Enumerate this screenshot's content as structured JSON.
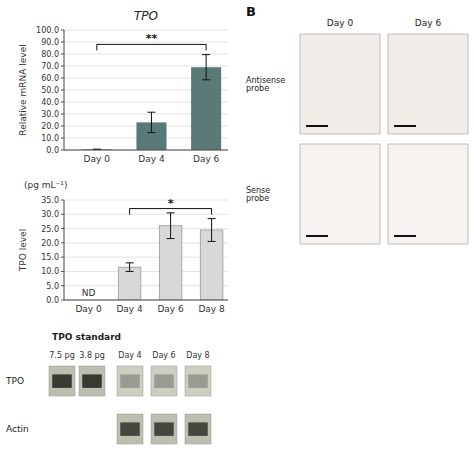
{
  "chart_data": [
    {
      "type": "bar",
      "title": "TPO",
      "categories": [
        "Day 0",
        "Day 4",
        "Day 6"
      ],
      "values": [
        0.5,
        23.0,
        69.0
      ],
      "errors": [
        0.2,
        8.5,
        10.5
      ],
      "color": "#5a7a78",
      "ylabel": "Relative mRNA level",
      "ylim": [
        0,
        100
      ],
      "yticks": [
        {
          "value": 0,
          "label": "0.0"
        },
        {
          "value": 10,
          "label": "10.0"
        },
        {
          "value": 20,
          "label": "20.0"
        },
        {
          "value": 30,
          "label": "30.0"
        },
        {
          "value": 40,
          "label": "40.0"
        },
        {
          "value": 50,
          "label": "50.0"
        },
        {
          "value": 60,
          "label": "60.0"
        },
        {
          "value": 70,
          "label": "70.0"
        },
        {
          "value": 80,
          "label": "80.0"
        },
        {
          "value": 90,
          "label": "90.0"
        },
        {
          "value": 100,
          "label": "100.0"
        }
      ],
      "grid": true,
      "annotations": [
        {
          "text": "**",
          "from": "Day 0",
          "to": "Day 6",
          "y": 88
        },
        {
          "text": "B"
        },
        {
          "text": "Day 0"
        },
        {
          "text": "Day 6"
        },
        {
          "text": "Antisense\nprobe"
        },
        {
          "text": "Sense\nprobe"
        }
      ]
    },
    {
      "type": "bar",
      "categories": [
        "Day 0",
        "Day 4",
        "Day 6",
        "Day 8"
      ],
      "values": [
        null,
        11.5,
        26.0,
        24.5
      ],
      "errors": [
        null,
        1.5,
        4.5,
        4.0
      ],
      "color": "#d8d8d8",
      "ylabel": "TPO level",
      "ylim": [
        0,
        35
      ],
      "yticks": [
        {
          "value": 0,
          "label": "0.0"
        },
        {
          "value": 5,
          "label": "5.0"
        },
        {
          "value": 10,
          "label": "10.0"
        },
        {
          "value": 15,
          "label": "15.0"
        },
        {
          "value": 20,
          "label": "20.0"
        },
        {
          "value": 25,
          "label": "25.0"
        },
        {
          "value": 30,
          "label": "30.0"
        },
        {
          "value": 35,
          "label": "35.0"
        }
      ],
      "grid": true,
      "annotations": [
        {
          "text": "(pg mL⁻¹)"
        },
        {
          "text": "ND",
          "category": "Day 0"
        },
        {
          "text": "*",
          "from": "Day 4",
          "to": "Day 8",
          "y": 32
        },
        {
          "text": "TPO standard"
        },
        {
          "text": "7.5 pg"
        },
        {
          "text": "3.8 pg"
        },
        {
          "text": "Day 4"
        },
        {
          "text": "Day 6"
        },
        {
          "text": "Day 8"
        },
        {
          "text": "TPO"
        },
        {
          "text": "Actin"
        }
      ]
    }
  ]
}
